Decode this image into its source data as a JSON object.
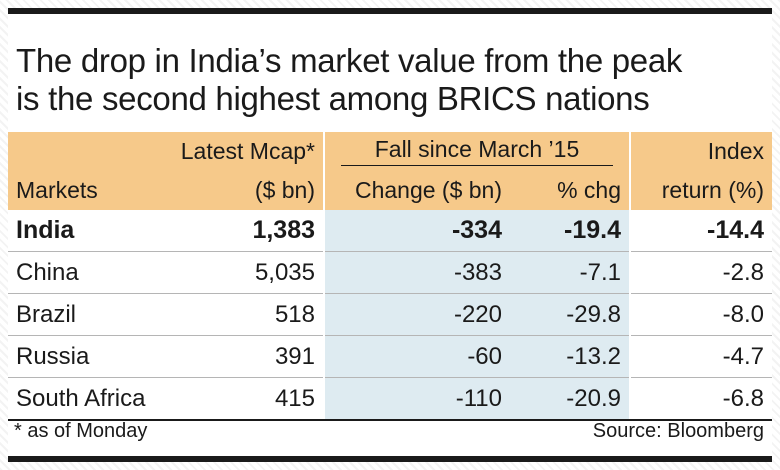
{
  "title_line1": "The drop in India’s market value from the peak",
  "title_line2": "is the second highest among BRICS nations",
  "colors": {
    "header_bg": "#f6c98a",
    "fall_bg": "#deebf1",
    "rule": "#1a1a1a"
  },
  "chart_data": {
    "type": "table",
    "title": "The drop in India’s market value from the peak is the second highest among BRICS nations",
    "header": {
      "markets": "Markets",
      "mcap_line1": "Latest Mcap*",
      "mcap_line2": "($ bn)",
      "fall_group": "Fall since March ’15",
      "change": "Change ($ bn)",
      "pct_chg": "% chg",
      "index_line1": "Index",
      "index_line2": "return (%)"
    },
    "rows": [
      {
        "market": "India",
        "mcap": "1,383",
        "change": "-334",
        "pct": "-19.4",
        "index": "-14.4",
        "highlight": true
      },
      {
        "market": "China",
        "mcap": "5,035",
        "change": "-383",
        "pct": "-7.1",
        "index": "-2.8",
        "highlight": false
      },
      {
        "market": "Brazil",
        "mcap": "518",
        "change": "-220",
        "pct": "-29.8",
        "index": "-8.0",
        "highlight": false
      },
      {
        "market": "Russia",
        "mcap": "391",
        "change": "-60",
        "pct": "-13.2",
        "index": "-4.7",
        "highlight": false
      },
      {
        "market": "South Africa",
        "mcap": "415",
        "change": "-110",
        "pct": "-20.9",
        "index": "-6.8",
        "highlight": false
      }
    ]
  },
  "footnote": "* as of Monday",
  "source": "Source: Bloomberg"
}
